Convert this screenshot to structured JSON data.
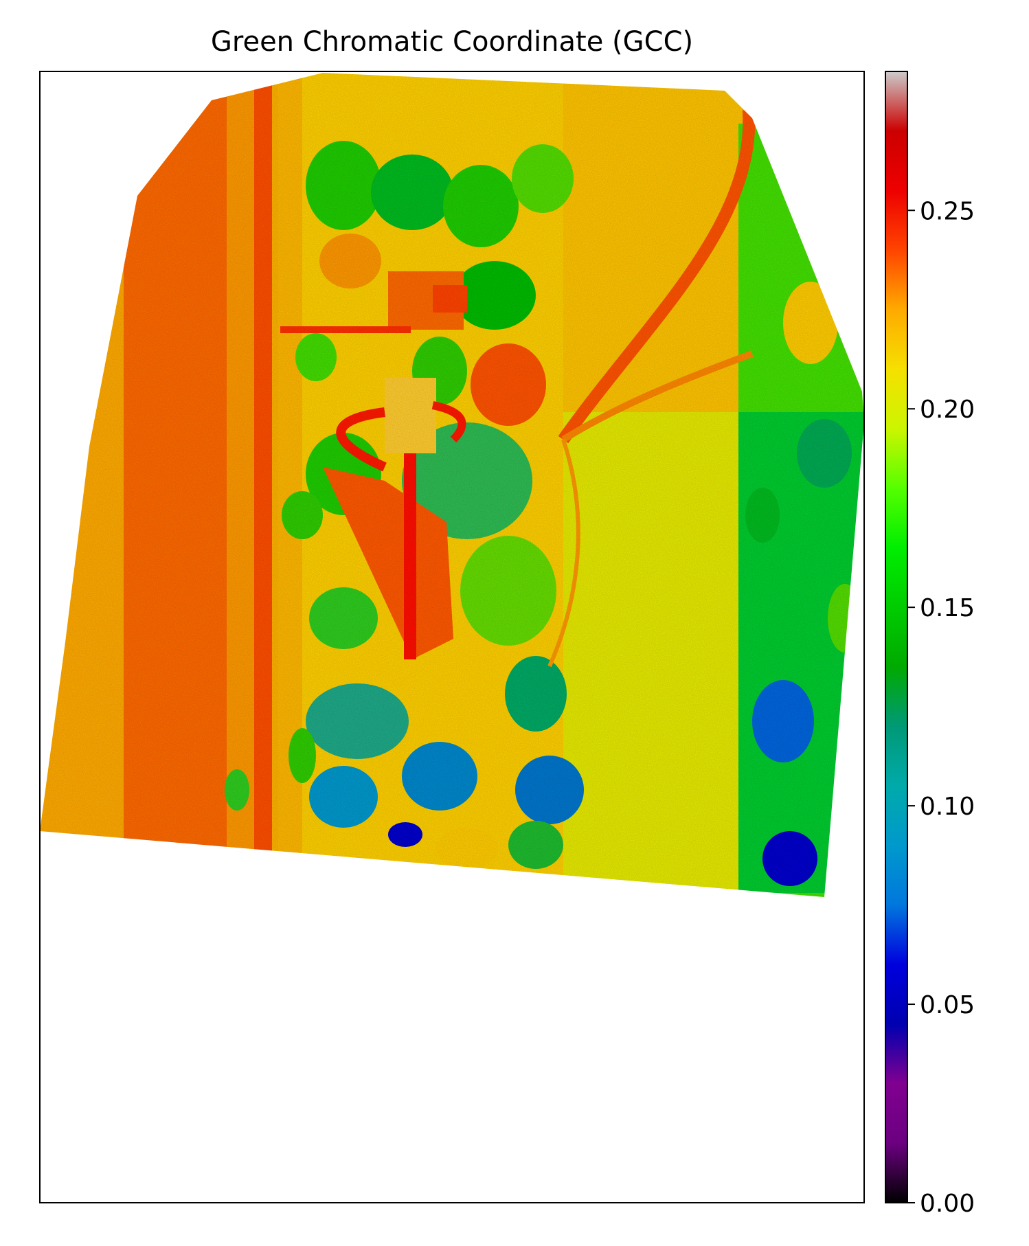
{
  "chart_data": {
    "type": "heatmap",
    "title": "Green Chromatic Coordinate (GCC)",
    "colormap": "nipy_spectral",
    "colorbar": {
      "vmin": 0.0,
      "vmax": 0.285,
      "ticks": [
        0.0,
        0.05,
        0.1,
        0.15,
        0.2,
        0.25
      ],
      "tick_labels": [
        "0.00",
        "0.05",
        "0.10",
        "0.15",
        "0.20",
        "0.25"
      ],
      "placement": "right",
      "stops": [
        {
          "value": 0.0,
          "color": "#000000"
        },
        {
          "value": 0.015,
          "color": "#6b0080"
        },
        {
          "value": 0.03,
          "color": "#800090"
        },
        {
          "value": 0.045,
          "color": "#0000b0"
        },
        {
          "value": 0.06,
          "color": "#0000dd"
        },
        {
          "value": 0.075,
          "color": "#0077dd"
        },
        {
          "value": 0.09,
          "color": "#0099cc"
        },
        {
          "value": 0.105,
          "color": "#00aaaa"
        },
        {
          "value": 0.12,
          "color": "#009977"
        },
        {
          "value": 0.135,
          "color": "#00aa00"
        },
        {
          "value": 0.15,
          "color": "#00cc00"
        },
        {
          "value": 0.165,
          "color": "#00ee00"
        },
        {
          "value": 0.18,
          "color": "#55ff00"
        },
        {
          "value": 0.195,
          "color": "#ccf500"
        },
        {
          "value": 0.21,
          "color": "#f5e000"
        },
        {
          "value": 0.225,
          "color": "#ffaa00"
        },
        {
          "value": 0.24,
          "color": "#ff4400"
        },
        {
          "value": 0.255,
          "color": "#ee0000"
        },
        {
          "value": 0.27,
          "color": "#cc0000"
        },
        {
          "value": 0.285,
          "color": "#cccccc"
        }
      ]
    },
    "axes": {
      "ticks_visible": false,
      "grid": false
    },
    "image_description_note": ""
  }
}
